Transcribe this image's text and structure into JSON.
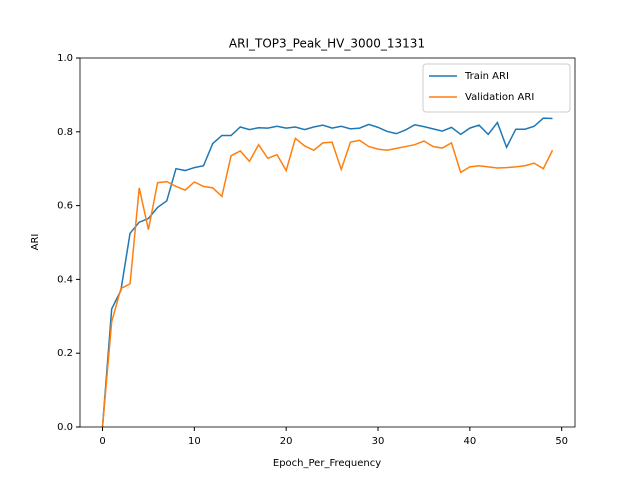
{
  "chart_data": {
    "type": "line",
    "title": "ARI_TOP3_Peak_HV_3000_13131",
    "x_label": "Epoch_Per_Frequency",
    "y_label": "ARI",
    "x": [
      0,
      1,
      2,
      3,
      4,
      5,
      6,
      7,
      8,
      9,
      10,
      11,
      12,
      13,
      14,
      15,
      16,
      17,
      18,
      19,
      20,
      21,
      22,
      23,
      24,
      25,
      26,
      27,
      28,
      29,
      30,
      31,
      32,
      33,
      34,
      35,
      36,
      37,
      38,
      39,
      40,
      41,
      42,
      43,
      44,
      45,
      46,
      47,
      48,
      49
    ],
    "series": [
      {
        "name": "Train ARI",
        "color": "#1f77b4",
        "values": [
          0.0,
          0.32,
          0.37,
          0.525,
          0.555,
          0.565,
          0.595,
          0.613,
          0.7,
          0.695,
          0.703,
          0.708,
          0.768,
          0.79,
          0.79,
          0.813,
          0.806,
          0.811,
          0.81,
          0.815,
          0.81,
          0.813,
          0.806,
          0.813,
          0.818,
          0.81,
          0.815,
          0.808,
          0.81,
          0.82,
          0.812,
          0.801,
          0.795,
          0.805,
          0.819,
          0.814,
          0.808,
          0.802,
          0.812,
          0.793,
          0.81,
          0.818,
          0.793,
          0.825,
          0.758,
          0.807,
          0.807,
          0.815,
          0.837,
          0.836
        ]
      },
      {
        "name": "Validation ARI",
        "color": "#ff7f0e",
        "values": [
          0.0,
          0.285,
          0.375,
          0.388,
          0.648,
          0.535,
          0.662,
          0.665,
          0.652,
          0.642,
          0.664,
          0.652,
          0.648,
          0.625,
          0.735,
          0.748,
          0.72,
          0.765,
          0.728,
          0.738,
          0.695,
          0.782,
          0.762,
          0.75,
          0.77,
          0.772,
          0.698,
          0.772,
          0.777,
          0.76,
          0.753,
          0.75,
          0.755,
          0.76,
          0.765,
          0.775,
          0.76,
          0.756,
          0.77,
          0.69,
          0.705,
          0.708,
          0.705,
          0.702,
          0.703,
          0.705,
          0.708,
          0.715,
          0.7,
          0.75
        ]
      }
    ],
    "xlim": [
      -2.45,
      51.45
    ],
    "xticks": [
      0,
      10,
      20,
      30,
      40,
      50
    ],
    "ylim": [
      0,
      1
    ],
    "yticks": [
      {
        "value": 0,
        "label": "0.0"
      },
      {
        "value": 0.2,
        "label": "0.2"
      },
      {
        "value": 0.4,
        "label": "0.4"
      },
      {
        "value": 0.6,
        "label": "0.6"
      },
      {
        "value": 0.8,
        "label": "0.8"
      },
      {
        "value": 1,
        "label": "1.0"
      }
    ],
    "legend": "upper right"
  }
}
